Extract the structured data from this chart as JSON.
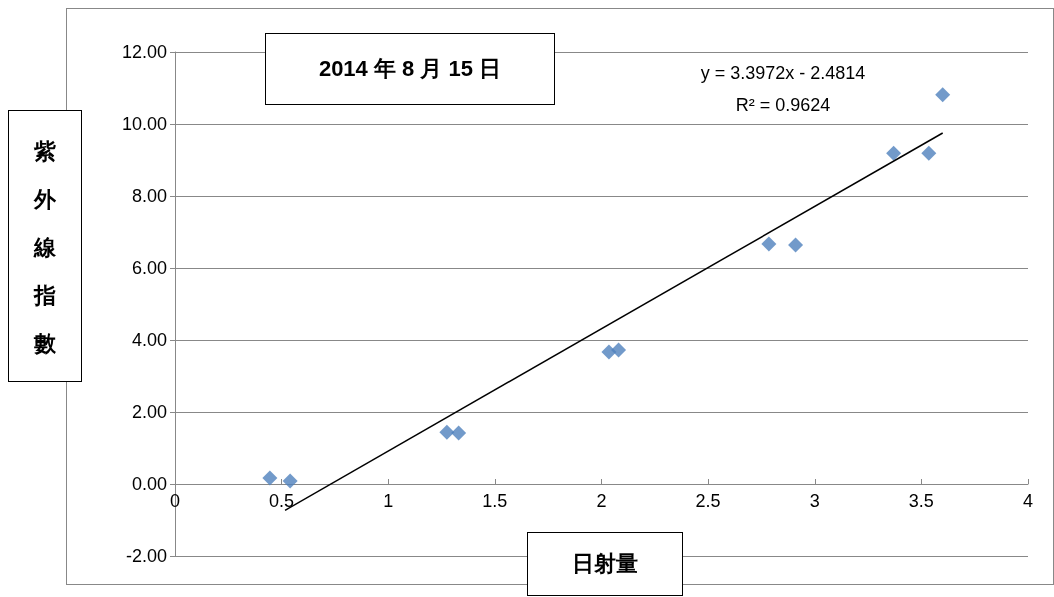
{
  "chart_data": {
    "type": "scatter",
    "title": "2014 年 8 月 15 日",
    "xlabel": "日射量",
    "ylabel": "紫外線指數",
    "annotations": [
      "y = 3.3972x - 2.4814",
      "R² = 0.9624"
    ],
    "series": [
      {
        "color": "#4f81bd",
        "marker": "diamond",
        "x": [
          0.445,
          0.54,
          1.275,
          1.33,
          2.035,
          2.08,
          2.785,
          2.91,
          3.37,
          3.535,
          3.6
        ],
        "values": [
          0.17,
          0.08,
          1.44,
          1.42,
          3.67,
          3.72,
          6.67,
          6.64,
          9.19,
          9.19,
          10.81
        ]
      },
      {
        "type": "line",
        "color": "#000000",
        "marker": "none",
        "line_style": "solid",
        "x": [
          0.516,
          3.6
        ],
        "values": [
          -0.73,
          9.75
        ]
      }
    ],
    "xlim": [
      0,
      4
    ],
    "xticks": [
      0,
      0.5,
      1,
      1.5,
      2,
      2.5,
      3,
      3.5,
      4
    ],
    "ylim": [
      -2,
      12
    ],
    "yticks": [
      {
        "value": -2,
        "label": "-2.00"
      },
      {
        "value": 0,
        "label": "0.00"
      },
      {
        "value": 2,
        "label": "2.00"
      },
      {
        "value": 4,
        "label": "4.00"
      },
      {
        "value": 6,
        "label": "6.00"
      },
      {
        "value": 8,
        "label": "8.00"
      },
      {
        "value": 10,
        "label": "10.00"
      },
      {
        "value": 12,
        "label": "12.00"
      }
    ],
    "grid": "y"
  }
}
